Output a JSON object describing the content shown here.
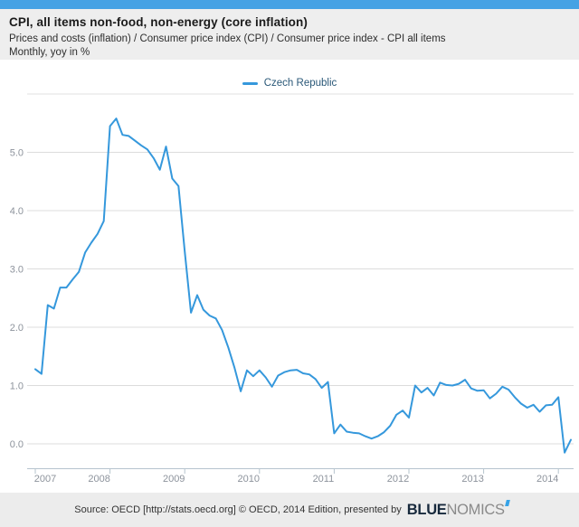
{
  "header": {
    "title": "CPI, all items non-food, non-energy (core inflation)",
    "subtitle": "Prices and costs (inflation) / Consumer price index (CPI) / Consumer price index - CPI all items",
    "frequency_note": "Monthly, yoy in %"
  },
  "legend": {
    "series_label": "Czech Republic"
  },
  "chart_data": {
    "type": "line",
    "title": "CPI, all items non-food, non-energy (core inflation)",
    "xlabel": "",
    "ylabel": "yoy in %",
    "x_tick_labels": [
      "2007",
      "2008",
      "2009",
      "2010",
      "2011",
      "2012",
      "2013",
      "2014"
    ],
    "y_ticks": [
      0,
      1,
      2,
      3,
      4,
      5
    ],
    "y_tick_labels": [
      "0.0",
      "1.0",
      "2.0",
      "3.0",
      "4.0",
      "5.0"
    ],
    "ylim": [
      -0.5,
      6
    ],
    "grid": true,
    "legend_position": "top-center",
    "x_monthly_start": "2007-01",
    "x_monthly_end": "2014-03",
    "series": [
      {
        "name": "Czech Republic",
        "color": "#3598dc",
        "monthly_values": [
          1.28,
          1.2,
          2.38,
          2.32,
          2.68,
          2.68,
          2.82,
          2.95,
          3.28,
          3.45,
          3.6,
          3.82,
          5.45,
          5.58,
          5.3,
          5.28,
          5.2,
          5.12,
          5.05,
          4.9,
          4.7,
          5.1,
          4.55,
          4.42,
          3.3,
          2.25,
          2.55,
          2.3,
          2.2,
          2.15,
          1.95,
          1.65,
          1.3,
          0.9,
          1.26,
          1.16,
          1.26,
          1.14,
          0.98,
          1.17,
          1.23,
          1.26,
          1.27,
          1.21,
          1.19,
          1.11,
          0.96,
          1.06,
          0.18,
          0.33,
          0.21,
          0.19,
          0.18,
          0.13,
          0.09,
          0.13,
          0.2,
          0.31,
          0.5,
          0.57,
          0.45,
          1.0,
          0.88,
          0.96,
          0.83,
          1.05,
          1.01,
          1.0,
          1.03,
          1.1,
          0.95,
          0.91,
          0.92,
          0.78,
          0.86,
          0.98,
          0.93,
          0.8,
          0.69,
          0.62,
          0.67,
          0.55,
          0.66,
          0.67,
          0.8,
          -0.15,
          0.07
        ]
      }
    ]
  },
  "footer": {
    "source_text": "Source: OECD [http://stats.oecd.org] © OECD, 2014 Edition, presented by",
    "brand_bold": "BLUE",
    "brand_light": "NOMICS"
  },
  "colors": {
    "accent_bar": "#46a2e4",
    "line": "#3598dc",
    "legend_text": "#2a5878",
    "grid": "#dcdcdc",
    "axis": "#b6c4ce",
    "axis_label": "#8d939c",
    "brand_dark": "#17293c",
    "brand_gray": "#8a8a8a",
    "brand_accent": "#36a3e8"
  }
}
